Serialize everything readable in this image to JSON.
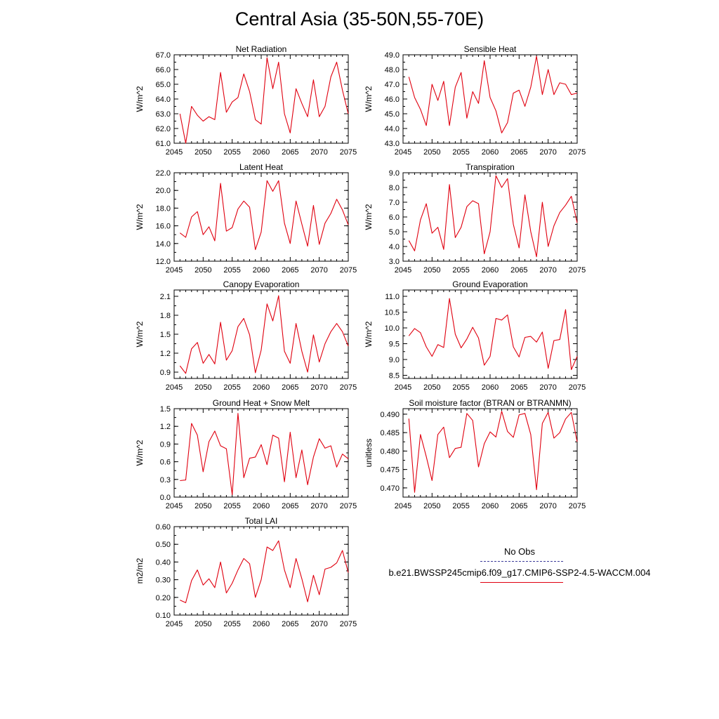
{
  "title": "Central Asia (35-50N,55-70E)",
  "legend": {
    "obs_label": "No Obs",
    "model_label": "b.e21.BWSSP245cmip6.f09_g17.CMIP6-SSP2-4.5-WACCM.004",
    "obs_color": "#3b3b9a",
    "model_color": "#e0000f"
  },
  "chart_data": [
    {
      "type": "line",
      "title": "Net Radiation",
      "ylabel": "W/m^2",
      "xlabel": "",
      "xlim": [
        2045,
        2075
      ],
      "xticks": [
        "2045",
        "2050",
        "2055",
        "2060",
        "2065",
        "2070",
        "2075"
      ],
      "ylim": [
        61.0,
        67.0
      ],
      "yticks": [
        "61.0",
        "62.0",
        "63.0",
        "64.0",
        "65.0",
        "66.0",
        "67.0"
      ],
      "x": [
        2046,
        2047,
        2048,
        2049,
        2050,
        2051,
        2052,
        2053,
        2054,
        2055,
        2056,
        2057,
        2058,
        2059,
        2060,
        2061,
        2062,
        2063,
        2064,
        2065,
        2066,
        2067,
        2068,
        2069,
        2070,
        2071,
        2072,
        2073,
        2074,
        2075
      ],
      "series": [
        {
          "values": [
            63.0,
            61.0,
            63.5,
            62.9,
            62.5,
            62.8,
            62.6,
            65.8,
            63.1,
            63.8,
            64.1,
            65.7,
            64.5,
            62.6,
            62.3,
            66.8,
            64.7,
            66.5,
            63.0,
            61.7,
            64.7,
            63.7,
            62.8,
            65.3,
            62.8,
            63.5,
            65.5,
            66.5,
            64.6,
            63.0
          ]
        }
      ]
    },
    {
      "type": "line",
      "title": "Sensible Heat",
      "ylabel": "W/m^2",
      "xlabel": "",
      "xlim": [
        2045,
        2075
      ],
      "xticks": [
        "2045",
        "2050",
        "2055",
        "2060",
        "2065",
        "2070",
        "2075"
      ],
      "ylim": [
        43.0,
        49.0
      ],
      "yticks": [
        "43.0",
        "44.0",
        "45.0",
        "46.0",
        "47.0",
        "48.0",
        "49.0"
      ],
      "x": [
        2046,
        2047,
        2048,
        2049,
        2050,
        2051,
        2052,
        2053,
        2054,
        2055,
        2056,
        2057,
        2058,
        2059,
        2060,
        2061,
        2062,
        2063,
        2064,
        2065,
        2066,
        2067,
        2068,
        2069,
        2070,
        2071,
        2072,
        2073,
        2074,
        2075
      ],
      "series": [
        {
          "values": [
            47.5,
            46.1,
            45.3,
            44.2,
            47.0,
            45.9,
            47.2,
            44.2,
            46.8,
            47.8,
            44.7,
            46.5,
            45.7,
            48.6,
            46.1,
            45.2,
            43.7,
            44.4,
            46.4,
            46.6,
            45.5,
            46.8,
            48.9,
            46.3,
            48.0,
            46.3,
            47.1,
            47.0,
            46.3,
            46.4
          ]
        }
      ]
    },
    {
      "type": "line",
      "title": "Latent Heat",
      "ylabel": "W/m^2",
      "xlabel": "",
      "xlim": [
        2045,
        2075
      ],
      "xticks": [
        "2045",
        "2050",
        "2055",
        "2060",
        "2065",
        "2070",
        "2075"
      ],
      "ylim": [
        12.0,
        22.0
      ],
      "yticks": [
        "12.0",
        "14.0",
        "16.0",
        "18.0",
        "20.0",
        "22.0"
      ],
      "x": [
        2046,
        2047,
        2048,
        2049,
        2050,
        2051,
        2052,
        2053,
        2054,
        2055,
        2056,
        2057,
        2058,
        2059,
        2060,
        2061,
        2062,
        2063,
        2064,
        2065,
        2066,
        2067,
        2068,
        2069,
        2070,
        2071,
        2072,
        2073,
        2074,
        2075
      ],
      "series": [
        {
          "values": [
            15.2,
            14.7,
            17.0,
            17.6,
            15.0,
            15.9,
            14.3,
            20.8,
            15.4,
            15.8,
            17.9,
            18.8,
            18.1,
            13.3,
            15.3,
            21.1,
            19.9,
            21.1,
            16.3,
            14.0,
            18.8,
            16.2,
            13.7,
            18.3,
            13.9,
            16.3,
            17.4,
            19.0,
            17.8,
            16.1
          ]
        }
      ]
    },
    {
      "type": "line",
      "title": "Transpiration",
      "ylabel": "W/m^2",
      "xlabel": "",
      "xlim": [
        2045,
        2075
      ],
      "xticks": [
        "2045",
        "2050",
        "2055",
        "2060",
        "2065",
        "2070",
        "2075"
      ],
      "ylim": [
        3.0,
        9.0
      ],
      "yticks": [
        "3.0",
        "4.0",
        "5.0",
        "6.0",
        "7.0",
        "8.0",
        "9.0"
      ],
      "x": [
        2046,
        2047,
        2048,
        2049,
        2050,
        2051,
        2052,
        2053,
        2054,
        2055,
        2056,
        2057,
        2058,
        2059,
        2060,
        2061,
        2062,
        2063,
        2064,
        2065,
        2066,
        2067,
        2068,
        2069,
        2070,
        2071,
        2072,
        2073,
        2074,
        2075
      ],
      "series": [
        {
          "values": [
            4.4,
            3.7,
            5.8,
            6.9,
            4.9,
            5.3,
            3.8,
            8.2,
            4.6,
            5.3,
            6.7,
            7.1,
            6.9,
            3.5,
            5.0,
            8.8,
            8.0,
            8.6,
            5.5,
            3.9,
            7.5,
            5.0,
            3.3,
            7.0,
            4.0,
            5.4,
            6.3,
            6.8,
            7.4,
            5.6
          ]
        }
      ]
    },
    {
      "type": "line",
      "title": "Canopy Evaporation",
      "ylabel": "W/m^2",
      "xlabel": "",
      "xlim": [
        2045,
        2075
      ],
      "xticks": [
        "2045",
        "2050",
        "2055",
        "2060",
        "2065",
        "2070",
        "2075"
      ],
      "ylim": [
        0.8,
        2.2
      ],
      "yticks": [
        "0.9",
        "1.2",
        "1.5",
        "1.8",
        "2.1"
      ],
      "x": [
        2046,
        2047,
        2048,
        2049,
        2050,
        2051,
        2052,
        2053,
        2054,
        2055,
        2056,
        2057,
        2058,
        2059,
        2060,
        2061,
        2062,
        2063,
        2064,
        2065,
        2066,
        2067,
        2068,
        2069,
        2070,
        2071,
        2072,
        2073,
        2074,
        2075
      ],
      "series": [
        {
          "values": [
            1.0,
            0.88,
            1.27,
            1.37,
            1.04,
            1.18,
            1.03,
            1.69,
            1.09,
            1.24,
            1.62,
            1.75,
            1.49,
            0.89,
            1.25,
            1.98,
            1.71,
            2.11,
            1.23,
            1.04,
            1.67,
            1.23,
            0.9,
            1.49,
            1.06,
            1.35,
            1.54,
            1.67,
            1.54,
            1.31
          ]
        }
      ]
    },
    {
      "type": "line",
      "title": "Ground Evaporation",
      "ylabel": "W/m^2",
      "xlabel": "",
      "xlim": [
        2045,
        2075
      ],
      "xticks": [
        "2045",
        "2050",
        "2055",
        "2060",
        "2065",
        "2070",
        "2075"
      ],
      "ylim": [
        8.4,
        11.2
      ],
      "yticks": [
        "8.5",
        "9.0",
        "9.5",
        "10.0",
        "10.5",
        "11.0"
      ],
      "x": [
        2046,
        2047,
        2048,
        2049,
        2050,
        2051,
        2052,
        2053,
        2054,
        2055,
        2056,
        2057,
        2058,
        2059,
        2060,
        2061,
        2062,
        2063,
        2064,
        2065,
        2066,
        2067,
        2068,
        2069,
        2070,
        2071,
        2072,
        2073,
        2074,
        2075
      ],
      "series": [
        {
          "values": [
            9.75,
            9.98,
            9.85,
            9.4,
            9.1,
            9.47,
            9.38,
            10.93,
            9.8,
            9.37,
            9.65,
            10.02,
            9.68,
            8.82,
            9.1,
            10.3,
            10.25,
            10.41,
            9.4,
            9.08,
            9.7,
            9.73,
            9.55,
            9.87,
            8.72,
            9.6,
            9.63,
            10.58,
            8.68,
            9.1
          ]
        }
      ]
    },
    {
      "type": "line",
      "title": "Ground Heat + Snow Melt",
      "ylabel": "W/m^2",
      "xlabel": "",
      "xlim": [
        2045,
        2075
      ],
      "xticks": [
        "2045",
        "2050",
        "2055",
        "2060",
        "2065",
        "2070",
        "2075"
      ],
      "ylim": [
        0.0,
        1.5
      ],
      "yticks": [
        "0.0",
        "0.3",
        "0.6",
        "0.9",
        "1.2",
        "1.5"
      ],
      "x": [
        2046,
        2047,
        2048,
        2049,
        2050,
        2051,
        2052,
        2053,
        2054,
        2055,
        2056,
        2057,
        2058,
        2059,
        2060,
        2061,
        2062,
        2063,
        2064,
        2065,
        2066,
        2067,
        2068,
        2069,
        2070,
        2071,
        2072,
        2073,
        2074,
        2075
      ],
      "series": [
        {
          "values": [
            0.28,
            0.29,
            1.25,
            1.05,
            0.43,
            0.94,
            1.12,
            0.87,
            0.82,
            0.04,
            1.42,
            0.33,
            0.66,
            0.68,
            0.89,
            0.55,
            1.05,
            1.0,
            0.26,
            1.1,
            0.33,
            0.8,
            0.21,
            0.68,
            0.99,
            0.83,
            0.87,
            0.51,
            0.73,
            0.65
          ]
        }
      ]
    },
    {
      "type": "line",
      "title": "Soil moisture factor (BTRAN or BTRANMN)",
      "ylabel": "unitless",
      "xlabel": "",
      "xlim": [
        2045,
        2075
      ],
      "xticks": [
        "2045",
        "2050",
        "2055",
        "2060",
        "2065",
        "2070",
        "2075"
      ],
      "ylim": [
        0.4675,
        0.4915
      ],
      "yticks": [
        "0.470",
        "0.475",
        "0.480",
        "0.485",
        "0.490"
      ],
      "x": [
        2046,
        2047,
        2048,
        2049,
        2050,
        2051,
        2052,
        2053,
        2054,
        2055,
        2056,
        2057,
        2058,
        2059,
        2060,
        2061,
        2062,
        2063,
        2064,
        2065,
        2066,
        2067,
        2068,
        2069,
        2070,
        2071,
        2072,
        2073,
        2074,
        2075
      ],
      "series": [
        {
          "values": [
            0.4888,
            0.4688,
            0.4845,
            0.4785,
            0.472,
            0.4845,
            0.4865,
            0.4782,
            0.4807,
            0.481,
            0.4902,
            0.4883,
            0.4757,
            0.482,
            0.4852,
            0.4838,
            0.4908,
            0.4853,
            0.4837,
            0.4898,
            0.4902,
            0.4845,
            0.4695,
            0.4875,
            0.4905,
            0.4835,
            0.485,
            0.4887,
            0.4905,
            0.4825
          ]
        }
      ]
    },
    {
      "type": "line",
      "title": "Total LAI",
      "ylabel": "m2/m2",
      "xlabel": "",
      "xlim": [
        2045,
        2075
      ],
      "xticks": [
        "2045",
        "2050",
        "2055",
        "2060",
        "2065",
        "2070",
        "2075"
      ],
      "ylim": [
        0.1,
        0.6
      ],
      "yticks": [
        "0.10",
        "0.20",
        "0.30",
        "0.40",
        "0.50",
        "0.60"
      ],
      "x": [
        2046,
        2047,
        2048,
        2049,
        2050,
        2051,
        2052,
        2053,
        2054,
        2055,
        2056,
        2057,
        2058,
        2059,
        2060,
        2061,
        2062,
        2063,
        2064,
        2065,
        2066,
        2067,
        2068,
        2069,
        2070,
        2071,
        2072,
        2073,
        2074,
        2075
      ],
      "series": [
        {
          "values": [
            0.185,
            0.17,
            0.295,
            0.355,
            0.27,
            0.305,
            0.255,
            0.4,
            0.225,
            0.28,
            0.355,
            0.42,
            0.39,
            0.2,
            0.3,
            0.485,
            0.465,
            0.52,
            0.355,
            0.255,
            0.42,
            0.305,
            0.175,
            0.325,
            0.215,
            0.36,
            0.37,
            0.395,
            0.465,
            0.34
          ]
        }
      ]
    }
  ]
}
